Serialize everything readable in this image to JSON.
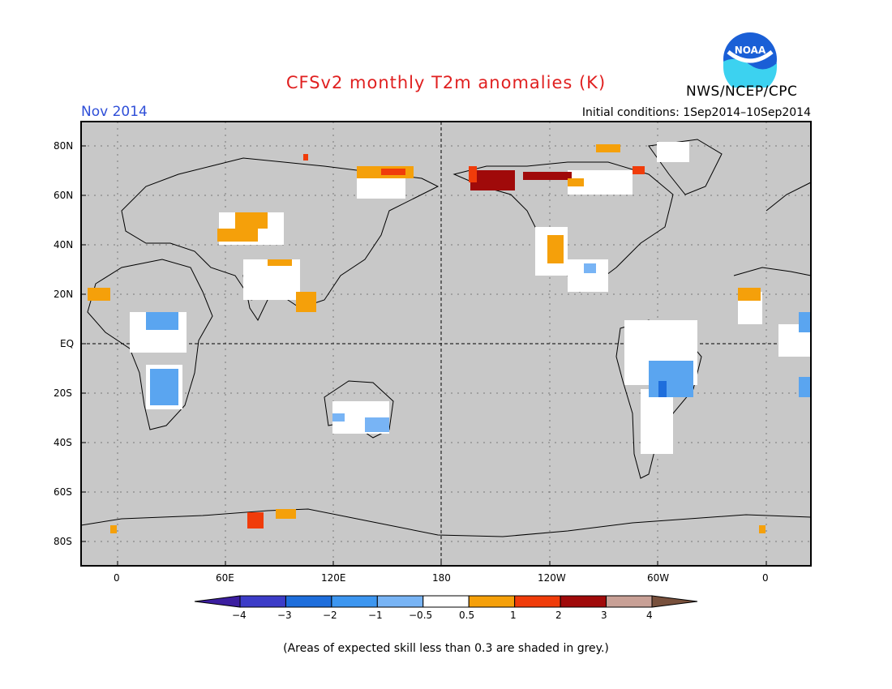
{
  "header": {
    "title": "CFSv2 monthly T2m anomalies (K)",
    "month": "Nov 2014",
    "initial_conditions": "Initial conditions: 1Sep2014–10Sep2014",
    "agency": "NWS/NCEP/CPC",
    "logo_text": "NOAA"
  },
  "map": {
    "lat_labels": [
      "80N",
      "60N",
      "40N",
      "20N",
      "EQ",
      "20S",
      "40S",
      "60S",
      "80S"
    ],
    "lon_labels": [
      "0",
      "60E",
      "120E",
      "180",
      "120W",
      "60W",
      "0"
    ],
    "background_color": "#c8c8c8"
  },
  "colorbar": {
    "labels": [
      "−4",
      "−3",
      "−2",
      "−1",
      "−0.5",
      "0.5",
      "1",
      "2",
      "3",
      "4"
    ],
    "colors": [
      "#3c1ea0",
      "#3c3cc8",
      "#1e6edc",
      "#3c96f0",
      "#78b4f5",
      "#ffffff",
      "#f5a00a",
      "#f03c0a",
      "#a00a0a",
      "#c8a096",
      "#78503c"
    ]
  },
  "footnote": "(Areas of expected skill less than 0.3 are shaded in grey.)"
}
